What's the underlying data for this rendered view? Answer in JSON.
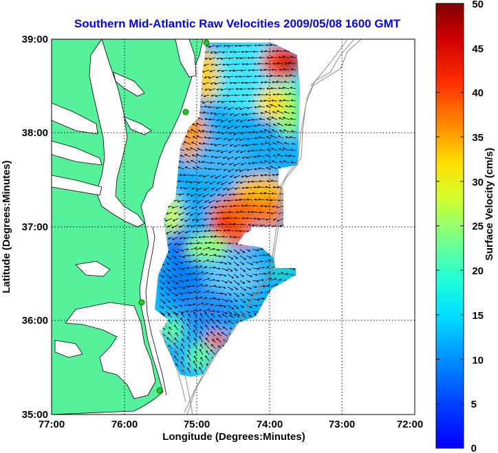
{
  "figure": {
    "title": "Southern Mid-Atlantic Raw Velocities 2009/05/08 1600 GMT",
    "xlabel": "Longitude (Degrees:Minutes)",
    "ylabel": "Latitude (Degrees:Minutes)",
    "x_ticks": [
      "77:00",
      "76:00",
      "75:00",
      "74:00",
      "73:00",
      "72:00"
    ],
    "y_ticks": [
      "39:00",
      "38:00",
      "37:00",
      "36:00",
      "35:00"
    ]
  },
  "colorbar": {
    "label": "Surface Velocity (cm/s)",
    "ticks": [
      "50",
      "45",
      "40",
      "35",
      "30",
      "25",
      "20",
      "15",
      "10",
      "5",
      "0"
    ],
    "min": 0,
    "max": 50,
    "colormap": "jet"
  },
  "map_extent": {
    "lon": [
      -77,
      -72
    ],
    "lat": [
      35,
      39
    ]
  },
  "colors": {
    "land": "#55f29b",
    "title": "#0000ff",
    "grid": "#000000",
    "isobath": "#8c8c8c",
    "station": "#22cc22"
  },
  "features": {
    "land_icon": "land-mass",
    "station_icon": "green-circle",
    "vector_icon": "black-arrow"
  }
}
